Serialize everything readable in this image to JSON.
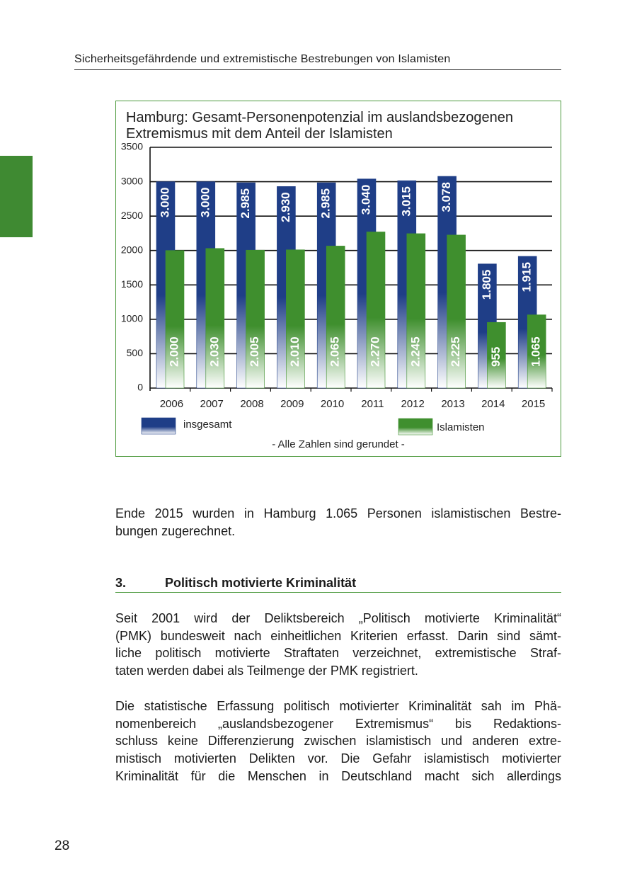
{
  "header": "Sicherheitsgefährdende und extremistische Bestrebungen von Islamisten",
  "chart_data": {
    "type": "bar",
    "title": "Hamburg: Gesamt-Personenpotenzial im auslandsbezogenen Extremismus mit dem Anteil der Islamisten",
    "categories": [
      "2006",
      "2007",
      "2008",
      "2009",
      "2010",
      "2011",
      "2012",
      "2013",
      "2014",
      "2015"
    ],
    "series": [
      {
        "name": "insgesamt",
        "color": "#1f3e87",
        "values": [
          3000,
          3000,
          2985,
          2930,
          2985,
          3040,
          3015,
          3078,
          1805,
          1915
        ],
        "value_labels": [
          "3.000",
          "3.000",
          "2.985",
          "2.930",
          "2.985",
          "3.040",
          "3.015",
          "3.078",
          "1.805",
          "1.915"
        ]
      },
      {
        "name": "Islamisten",
        "color": "#3f8f2e",
        "values": [
          2000,
          2030,
          2005,
          2010,
          2065,
          2270,
          2245,
          2225,
          955,
          1065
        ],
        "value_labels": [
          "2.000",
          "2.030",
          "2.005",
          "2.010",
          "2.065",
          "2.270",
          "2.245",
          "2.225",
          "955",
          "1.065"
        ]
      }
    ],
    "ylim": [
      0,
      3500
    ],
    "yticks": [
      0,
      500,
      1000,
      1500,
      2000,
      2500,
      3000,
      3500
    ],
    "grid": true,
    "note": "- Alle Zahlen sind gerundet -"
  },
  "paragraphs": [
    [
      "Ende 2015 wurden in Hamburg 1.065 Personen islamistischen Bestre-",
      "bungen zugerechnet."
    ],
    [
      "Seit 2001 wird der Deliktsbereich „Politisch motivierte Kriminalität“",
      "(PMK) bundesweit nach einheitlichen Kriterien erfasst. Darin sind sämt-",
      "liche politisch motivierte Straftaten verzeichnet, extremistische Straf-",
      "taten werden dabei als Teilmenge der PMK registriert."
    ],
    [
      "Die statistische Erfassung politisch motivierter Kriminalität sah im Phä-",
      "nomenbereich „auslandsbezogener Extremismus“ bis Redaktions-",
      "schluss keine Differenzierung zwischen islamistisch und anderen extre-",
      "mistisch motivierten Delikten vor. Die Gefahr islamistisch motivierter",
      "Kriminalität für die Menschen in Deutschland macht sich allerdings"
    ]
  ],
  "section": {
    "number": "3.",
    "title": "Politisch motivierte Kriminalität"
  },
  "page_number": "28"
}
